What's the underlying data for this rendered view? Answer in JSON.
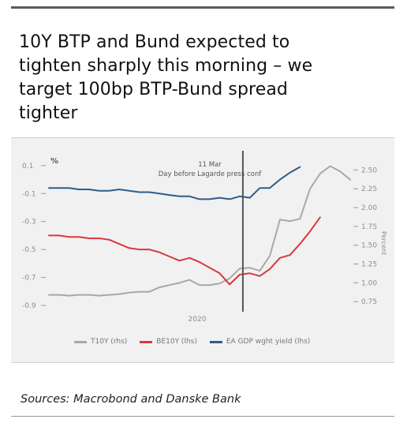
{
  "title": "10Y BTP and Bund expected to tighten sharply this morning – we target 100bp BTP-Bund spread tighter",
  "sources": "Sources: Macrobond and Danske Bank",
  "chart_data": {
    "type": "line",
    "left_unit": "%",
    "right_unit": "Percent",
    "x_label": "2020",
    "annotation": "11 Mar\nDay before Lagarde press conf",
    "annotation_index": 19,
    "left_axis": {
      "min": -0.9,
      "max": 0.15,
      "ticks": [
        "0.1",
        "-0.1",
        "-0.3",
        "-0.5",
        "-0.7",
        "-0.9"
      ]
    },
    "right_axis": {
      "min": 0.7,
      "max": 2.65,
      "ticks": [
        "2.50",
        "2.25",
        "2.00",
        "1.75",
        "1.50",
        "1.25",
        "1.00",
        "0.75"
      ]
    },
    "colors": {
      "grey": "#a8a8a8",
      "red": "#d7393f",
      "blue": "#2f5c8a",
      "divider": "#555555"
    },
    "series": [
      {
        "name": "T10Y (rhs)",
        "color": "#a8a8a8",
        "axis": "right",
        "values": [
          0.84,
          0.84,
          0.83,
          0.84,
          0.84,
          0.83,
          0.84,
          0.85,
          0.87,
          0.88,
          0.88,
          0.94,
          0.97,
          1.0,
          1.04,
          0.97,
          0.97,
          0.99,
          1.06,
          1.19,
          1.2,
          1.16,
          1.36,
          1.84,
          1.82,
          1.85,
          2.25,
          2.45,
          2.55,
          2.48,
          2.37
        ]
      },
      {
        "name": "BE10Y (lhs)",
        "color": "#d7393f",
        "axis": "left",
        "values": [
          -0.4,
          -0.4,
          -0.41,
          -0.41,
          -0.42,
          -0.42,
          -0.43,
          -0.46,
          -0.49,
          -0.5,
          -0.5,
          -0.52,
          -0.55,
          -0.58,
          -0.56,
          -0.59,
          -0.63,
          -0.67,
          -0.75,
          -0.68,
          -0.67,
          -0.69,
          -0.64,
          -0.56,
          -0.54,
          -0.46,
          -0.37,
          -0.27
        ]
      },
      {
        "name": "EA GDP wght yield (lhs)",
        "color": "#2f5c8a",
        "axis": "left",
        "values": [
          -0.06,
          -0.06,
          -0.06,
          -0.07,
          -0.07,
          -0.08,
          -0.08,
          -0.07,
          -0.08,
          -0.09,
          -0.09,
          -0.1,
          -0.11,
          -0.12,
          -0.12,
          -0.14,
          -0.14,
          -0.13,
          -0.14,
          -0.12,
          -0.13,
          -0.06,
          -0.06,
          0.0,
          0.05,
          0.09
        ]
      }
    ]
  }
}
